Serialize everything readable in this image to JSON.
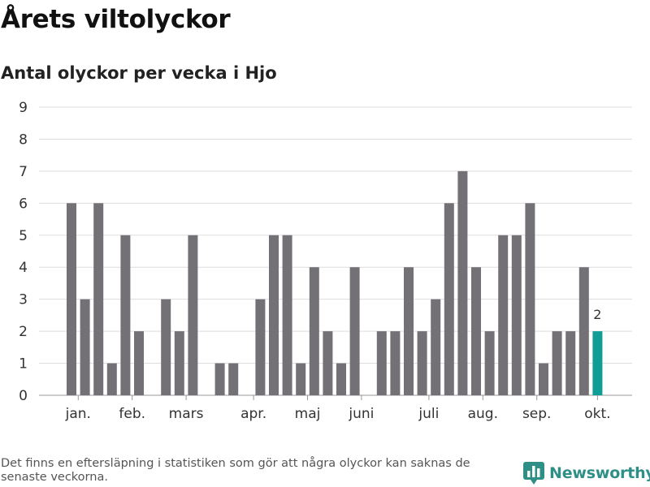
{
  "header": {
    "title": "Årets viltolyckor",
    "subtitle": "Antal olyckor per vecka i Hjo"
  },
  "footer": {
    "note": "Det finns en eftersläpning i statistiken som gör att några olyckor kan saknas de senaste veckorna.",
    "brand": "Newsworthy",
    "brand_icon": "bar-chart-logo-icon"
  },
  "colors": {
    "bar": "#737176",
    "highlight": "#0f9d96",
    "grid": "#dddddd",
    "brand": "#2e8f87"
  },
  "chart_data": {
    "type": "bar",
    "title": "",
    "xlabel": "",
    "ylabel": "",
    "ylim": [
      0,
      9
    ],
    "yticks": [
      0,
      1,
      2,
      3,
      4,
      5,
      6,
      7,
      8,
      9
    ],
    "grid": true,
    "weeks": [
      1,
      2,
      3,
      4,
      5,
      6,
      7,
      8,
      9,
      10,
      11,
      12,
      13,
      14,
      15,
      16,
      17,
      18,
      19,
      20,
      21,
      22,
      23,
      24,
      25,
      26,
      27,
      28,
      29,
      30,
      31,
      32,
      33,
      34,
      35,
      36,
      37,
      38,
      39,
      40
    ],
    "values": [
      6,
      3,
      6,
      1,
      5,
      2,
      0,
      3,
      2,
      5,
      0,
      1,
      1,
      0,
      3,
      5,
      5,
      1,
      4,
      2,
      1,
      4,
      0,
      2,
      2,
      4,
      2,
      3,
      6,
      7,
      4,
      2,
      5,
      5,
      6,
      1,
      2,
      2,
      4,
      2
    ],
    "highlight_index": 39,
    "highlight_label": "2",
    "month_labels": [
      {
        "label": "jan.",
        "week": 1.5
      },
      {
        "label": "feb.",
        "week": 5.5
      },
      {
        "label": "mars",
        "week": 9.5
      },
      {
        "label": "apr.",
        "week": 14.5
      },
      {
        "label": "maj",
        "week": 18.5
      },
      {
        "label": "juni",
        "week": 22.5
      },
      {
        "label": "juli",
        "week": 27.5
      },
      {
        "label": "aug.",
        "week": 31.5
      },
      {
        "label": "sep.",
        "week": 35.5
      },
      {
        "label": "okt.",
        "week": 40
      }
    ]
  }
}
